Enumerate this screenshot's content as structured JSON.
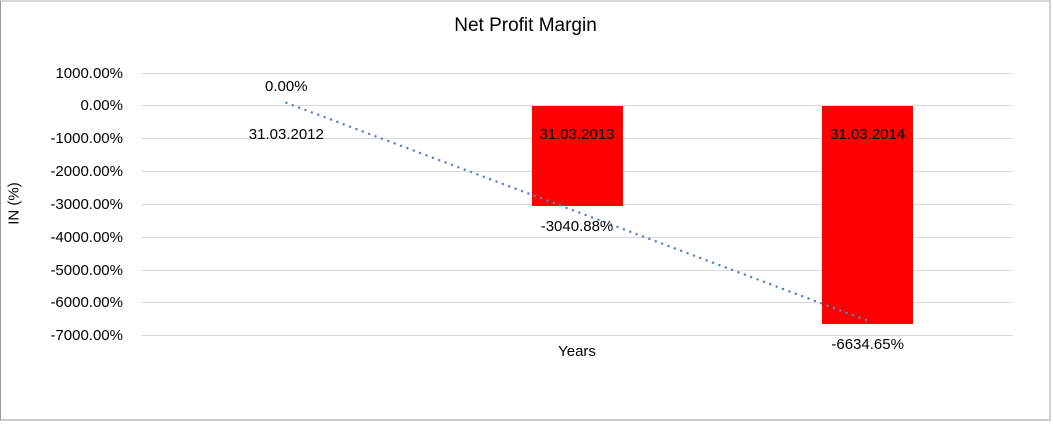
{
  "chart_data": {
    "type": "bar",
    "title": "Net Profit Margin",
    "xlabel": "Years",
    "ylabel": "IN (%)",
    "categories": [
      "31.03.2012",
      "31.03.2013",
      "31.03.2014"
    ],
    "series": [
      {
        "name": "Net Profit Margin",
        "values": [
          0,
          -3040.88,
          -6634.65
        ]
      }
    ],
    "data_labels": [
      "0.00%",
      "-3040.88%",
      "-6634.65%"
    ],
    "ylim": [
      -7000,
      1000
    ],
    "ytick_step": 1000,
    "ytick_labels": [
      "1000.00%",
      "0.00%",
      "-1000.00%",
      "-2000.00%",
      "-3000.00%",
      "-4000.00%",
      "-5000.00%",
      "-6000.00%",
      "-7000.00%"
    ],
    "grid": true,
    "legend_position": "none",
    "bar_color": "#FF0000",
    "gridline_color": "#D9D9D9",
    "trendline": {
      "type": "linear",
      "style": "dotted",
      "color": "#4F86C6",
      "values_at_categories": [
        92.2,
        -3225.2,
        -6542.5
      ]
    }
  }
}
